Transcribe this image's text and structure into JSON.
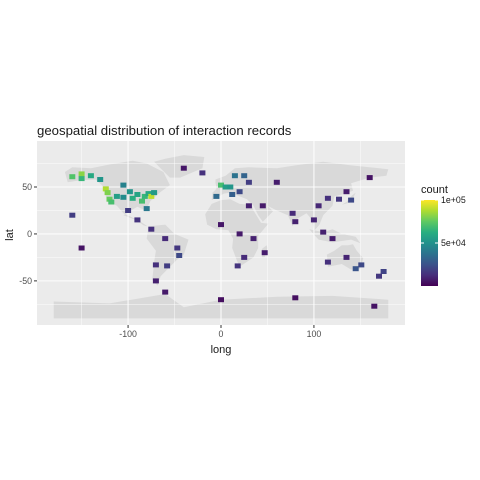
{
  "chart_data": {
    "type": "heatmap",
    "title": "geospatial distribution of interaction records",
    "xlabel": "long",
    "ylabel": "lat",
    "xlim": [
      -198,
      198
    ],
    "ylim": [
      -97,
      99
    ],
    "x_ticks": [
      {
        "value": -100,
        "label": "-100"
      },
      {
        "value": 0,
        "label": "0"
      },
      {
        "value": 100,
        "label": "100"
      }
    ],
    "y_ticks": [
      {
        "value": 50,
        "label": "50"
      },
      {
        "value": 0,
        "label": "0"
      },
      {
        "value": -50,
        "label": "-50"
      }
    ],
    "grid": true,
    "legend": {
      "title": "count",
      "placement": "right",
      "colormap": "viridis",
      "range": [
        0,
        100000
      ],
      "ticks": [
        {
          "value": 50000,
          "label": "5e+04"
        },
        {
          "value": 100000,
          "label": "1e+05"
        }
      ]
    },
    "colors": {
      "panel_background": "#ebebeb",
      "grid_major": "#ffffff",
      "land": "#d9d9d9",
      "low": "#440154",
      "mid": "#21918c",
      "high": "#fde725"
    },
    "cells": [
      {
        "lon": -160,
        "lat": 61,
        "count": 72000
      },
      {
        "lon": -150,
        "lat": 64,
        "count": 82000
      },
      {
        "lon": -150,
        "lat": 59,
        "count": 66000
      },
      {
        "lon": -140,
        "lat": 62,
        "count": 60000
      },
      {
        "lon": -130,
        "lat": 58,
        "count": 52000
      },
      {
        "lon": -124,
        "lat": 48,
        "count": 88000
      },
      {
        "lon": -122,
        "lat": 44,
        "count": 80000
      },
      {
        "lon": -120,
        "lat": 37,
        "count": 76000
      },
      {
        "lon": -118,
        "lat": 34,
        "count": 70000
      },
      {
        "lon": -112,
        "lat": 40,
        "count": 56000
      },
      {
        "lon": -105,
        "lat": 39,
        "count": 48000
      },
      {
        "lon": -105,
        "lat": 52,
        "count": 44000
      },
      {
        "lon": -98,
        "lat": 45,
        "count": 52000
      },
      {
        "lon": -95,
        "lat": 38,
        "count": 62000
      },
      {
        "lon": -90,
        "lat": 42,
        "count": 58000
      },
      {
        "lon": -85,
        "lat": 35,
        "count": 70000
      },
      {
        "lon": -82,
        "lat": 40,
        "count": 66000
      },
      {
        "lon": -78,
        "lat": 43,
        "count": 60000
      },
      {
        "lon": -75,
        "lat": 40,
        "count": 90000
      },
      {
        "lon": -72,
        "lat": 44,
        "count": 54000
      },
      {
        "lon": -80,
        "lat": 27,
        "count": 40000
      },
      {
        "lon": -100,
        "lat": 25,
        "count": 18000
      },
      {
        "lon": -90,
        "lat": 15,
        "count": 15000
      },
      {
        "lon": -75,
        "lat": 5,
        "count": 14000
      },
      {
        "lon": -60,
        "lat": -5,
        "count": 12000
      },
      {
        "lon": -47,
        "lat": -15,
        "count": 16000
      },
      {
        "lon": -45,
        "lat": -23,
        "count": 22000
      },
      {
        "lon": -58,
        "lat": -34,
        "count": 18000
      },
      {
        "lon": -70,
        "lat": -33,
        "count": 14000
      },
      {
        "lon": -70,
        "lat": -50,
        "count": 9000
      },
      {
        "lon": 0,
        "lat": 52,
        "count": 70000
      },
      {
        "lon": 5,
        "lat": 50,
        "count": 55000
      },
      {
        "lon": 10,
        "lat": 50,
        "count": 52000
      },
      {
        "lon": 15,
        "lat": 62,
        "count": 38000
      },
      {
        "lon": 25,
        "lat": 62,
        "count": 32000
      },
      {
        "lon": -5,
        "lat": 40,
        "count": 34000
      },
      {
        "lon": 12,
        "lat": 42,
        "count": 30000
      },
      {
        "lon": 20,
        "lat": 45,
        "count": 22000
      },
      {
        "lon": 30,
        "lat": 55,
        "count": 18000
      },
      {
        "lon": 60,
        "lat": 55,
        "count": 8000
      },
      {
        "lon": 30,
        "lat": 30,
        "count": 9000
      },
      {
        "lon": 45,
        "lat": 30,
        "count": 7000
      },
      {
        "lon": 77,
        "lat": 22,
        "count": 12000
      },
      {
        "lon": 80,
        "lat": 13,
        "count": 9000
      },
      {
        "lon": 100,
        "lat": 15,
        "count": 10000
      },
      {
        "lon": 105,
        "lat": 30,
        "count": 11000
      },
      {
        "lon": 115,
        "lat": 38,
        "count": 14000
      },
      {
        "lon": 127,
        "lat": 37,
        "count": 16000
      },
      {
        "lon": 140,
        "lat": 36,
        "count": 22000
      },
      {
        "lon": 135,
        "lat": 45,
        "count": 8000
      },
      {
        "lon": 110,
        "lat": 2,
        "count": 9000
      },
      {
        "lon": 120,
        "lat": -5,
        "count": 8000
      },
      {
        "lon": 0,
        "lat": 10,
        "count": 6000
      },
      {
        "lon": 20,
        "lat": 0,
        "count": 7000
      },
      {
        "lon": 35,
        "lat": -5,
        "count": 9000
      },
      {
        "lon": 25,
        "lat": -25,
        "count": 12000
      },
      {
        "lon": 18,
        "lat": -34,
        "count": 15000
      },
      {
        "lon": 47,
        "lat": -20,
        "count": 8000
      },
      {
        "lon": 115,
        "lat": -30,
        "count": 14000
      },
      {
        "lon": 135,
        "lat": -25,
        "count": 10000
      },
      {
        "lon": 145,
        "lat": -37,
        "count": 26000
      },
      {
        "lon": 151,
        "lat": -33,
        "count": 22000
      },
      {
        "lon": 175,
        "lat": -40,
        "count": 20000
      },
      {
        "lon": 170,
        "lat": -45,
        "count": 16000
      },
      {
        "lon": -160,
        "lat": 20,
        "count": 18000
      },
      {
        "lon": -150,
        "lat": -15,
        "count": 5000
      },
      {
        "lon": -20,
        "lat": 65,
        "count": 14000
      },
      {
        "lon": -40,
        "lat": 70,
        "count": 6000
      },
      {
        "lon": 160,
        "lat": 60,
        "count": 5000
      },
      {
        "lon": -60,
        "lat": -62,
        "count": 7000
      },
      {
        "lon": 0,
        "lat": -70,
        "count": 4000
      },
      {
        "lon": 80,
        "lat": -68,
        "count": 4000
      },
      {
        "lon": 165,
        "lat": -77,
        "count": 5000
      }
    ]
  }
}
